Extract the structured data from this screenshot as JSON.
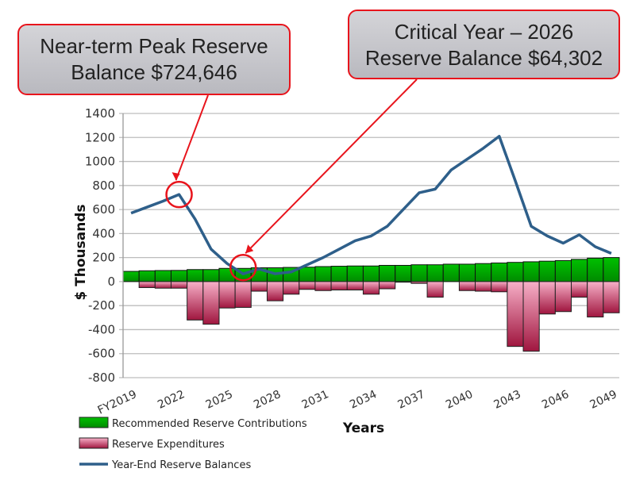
{
  "callouts": [
    {
      "line1": "Near-term Peak Reserve",
      "line2": "Balance $724,646"
    },
    {
      "line1": "Critical Year – 2026",
      "line2": "Reserve Balance $64,302"
    }
  ],
  "chart_data": {
    "type": "bar",
    "xlabel": "Years",
    "ylabel": "$ Thousands",
    "ylim": [
      -800,
      1400
    ],
    "yticks": [
      1400,
      1200,
      1000,
      800,
      600,
      400,
      200,
      0,
      -200,
      -400,
      -600,
      -800
    ],
    "grid": true,
    "legend_position": "bottom-left",
    "categories": [
      "FY2019",
      "2020",
      "2021",
      "2022",
      "2023",
      "2024",
      "2025",
      "2026",
      "2027",
      "2028",
      "2029",
      "2030",
      "2031",
      "2032",
      "2033",
      "2034",
      "2035",
      "2036",
      "2037",
      "2038",
      "2039",
      "2040",
      "2041",
      "2042",
      "2043",
      "2044",
      "2045",
      "2046",
      "2047",
      "2048",
      "2049"
    ],
    "xtick_labels": [
      "FY2019",
      "2022",
      "2025",
      "2028",
      "2031",
      "2034",
      "2037",
      "2040",
      "2043",
      "2046",
      "2049"
    ],
    "series": [
      {
        "name": "Recommended Reserve Contributions",
        "type": "bar",
        "color": "#00b000",
        "values": [
          85,
          90,
          92,
          93,
          100,
          100,
          110,
          110,
          115,
          115,
          118,
          120,
          125,
          128,
          130,
          130,
          135,
          135,
          140,
          140,
          145,
          145,
          150,
          155,
          160,
          165,
          170,
          175,
          185,
          195,
          200
        ]
      },
      {
        "name": "Reserve Expenditures",
        "type": "bar",
        "color": "#a0163f",
        "values": [
          0,
          -50,
          -55,
          -55,
          -320,
          -355,
          -220,
          -215,
          -80,
          -160,
          -105,
          -65,
          -75,
          -70,
          -70,
          -105,
          -60,
          -5,
          -15,
          -130,
          0,
          -75,
          -80,
          -85,
          -540,
          -580,
          -270,
          -250,
          -130,
          -295,
          -260
        ]
      },
      {
        "name": "Year-End Reserve Balances",
        "type": "line",
        "color": "#2e5f8a",
        "values": [
          570,
          620,
          670,
          725,
          520,
          270,
          150,
          64,
          105,
          65,
          80,
          140,
          200,
          270,
          340,
          380,
          460,
          600,
          740,
          770,
          930,
          1020,
          1110,
          1210,
          840,
          460,
          380,
          320,
          390,
          290,
          235
        ]
      }
    ]
  }
}
